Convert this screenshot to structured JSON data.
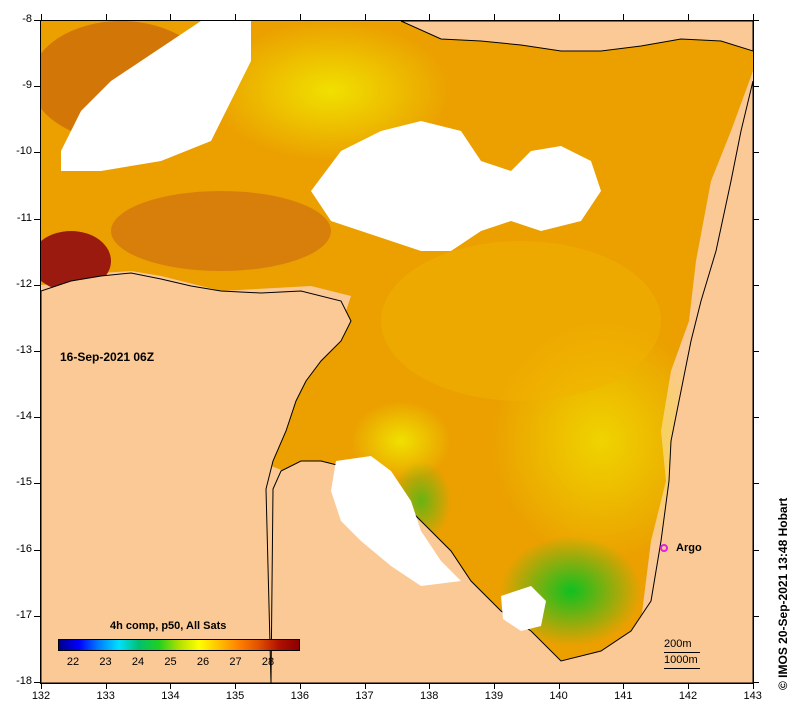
{
  "map": {
    "date_label": "16-Sep-2021 06Z",
    "x_ticks": [
      "132",
      "133",
      "134",
      "135",
      "136",
      "137",
      "138",
      "139",
      "140",
      "141",
      "142",
      "143"
    ],
    "y_ticks": [
      "-8",
      "-9",
      "-10",
      "-11",
      "-12",
      "-13",
      "-14",
      "-15",
      "-16",
      "-17",
      "-18"
    ],
    "lon_range": [
      132,
      143
    ],
    "lat_range": [
      -18,
      -8
    ],
    "land_color": "#fbc995",
    "coast_color": "#000000"
  },
  "legend": {
    "title": "4h comp, p50, All Sats",
    "ticks": [
      "22",
      "23",
      "24",
      "25",
      "26",
      "27",
      "28"
    ]
  },
  "argo": {
    "label": "Argo",
    "color": "#e020e0",
    "lon": 141.7,
    "lat": -16.0
  },
  "scale": {
    "label_1": "200m",
    "label_2": "1000m"
  },
  "credit": "© IMOS 20-Sep-2021 13:48 Hobart"
}
